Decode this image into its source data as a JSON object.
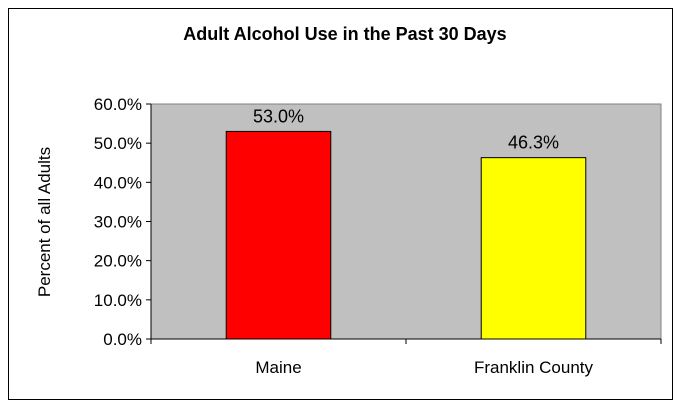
{
  "chart_data": {
    "type": "bar",
    "title": "Adult Alcohol Use in the Past 30 Days",
    "xlabel": "",
    "ylabel": "Percent of all Adults",
    "categories": [
      "Maine",
      "Franklin County"
    ],
    "values": [
      53.0,
      46.3
    ],
    "data_labels": [
      "53.0%",
      "46.3%"
    ],
    "bar_colors": [
      "#ff0000",
      "#ffff00"
    ],
    "ylim": [
      0,
      60
    ],
    "yticks": [
      0,
      10,
      20,
      30,
      40,
      50,
      60
    ],
    "ytick_labels": [
      "0.0%",
      "10.0%",
      "20.0%",
      "30.0%",
      "40.0%",
      "50.0%",
      "60.0%"
    ],
    "plot_background": "#c0c0c0",
    "grid": false,
    "legend": "none"
  }
}
